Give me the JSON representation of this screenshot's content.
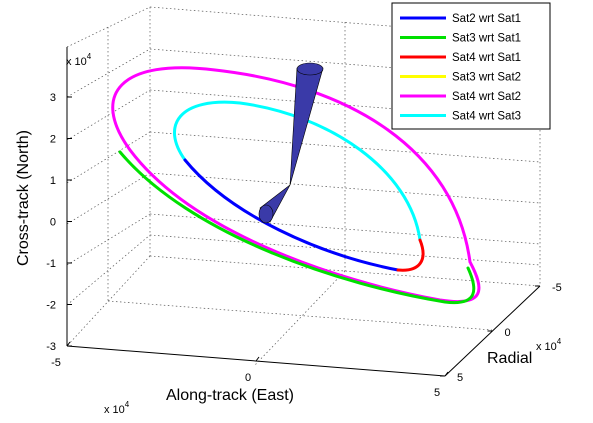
{
  "chart_data": {
    "type": "line",
    "projection": "3d",
    "xlabel": "Along-track (East)",
    "ylabel": "Radial",
    "zlabel": "Cross-track (North)",
    "x_ticks": [
      "-5",
      "0",
      "5"
    ],
    "y_ticks": [
      "-5",
      "0",
      "5"
    ],
    "z_ticks": [
      "3",
      "2",
      "1",
      "0",
      "-1",
      "-2",
      "-3"
    ],
    "exponent_base": "x 10",
    "exponent_power": "4",
    "xlim": [
      -50000,
      50000
    ],
    "ylim": [
      -50000,
      50000
    ],
    "zlim": [
      -30000,
      30000
    ],
    "grid": true,
    "legend_position": "top-right",
    "series": [
      {
        "name": "Sat2 wrt Sat1",
        "color": "#0000ff"
      },
      {
        "name": "Sat3 wrt Sat1",
        "color": "#00e000"
      },
      {
        "name": "Sat4 wrt Sat1",
        "color": "#ff0000"
      },
      {
        "name": "Sat3 wrt Sat2",
        "color": "#ffff00"
      },
      {
        "name": "Sat4 wrt Sat2",
        "color": "#ff00ff"
      },
      {
        "name": "Sat4 wrt Sat3",
        "color": "#00ffff"
      }
    ],
    "colors": {
      "cone_fill": "#3a3aa8",
      "cone_stroke": "#000000",
      "grid": "#555555"
    }
  }
}
